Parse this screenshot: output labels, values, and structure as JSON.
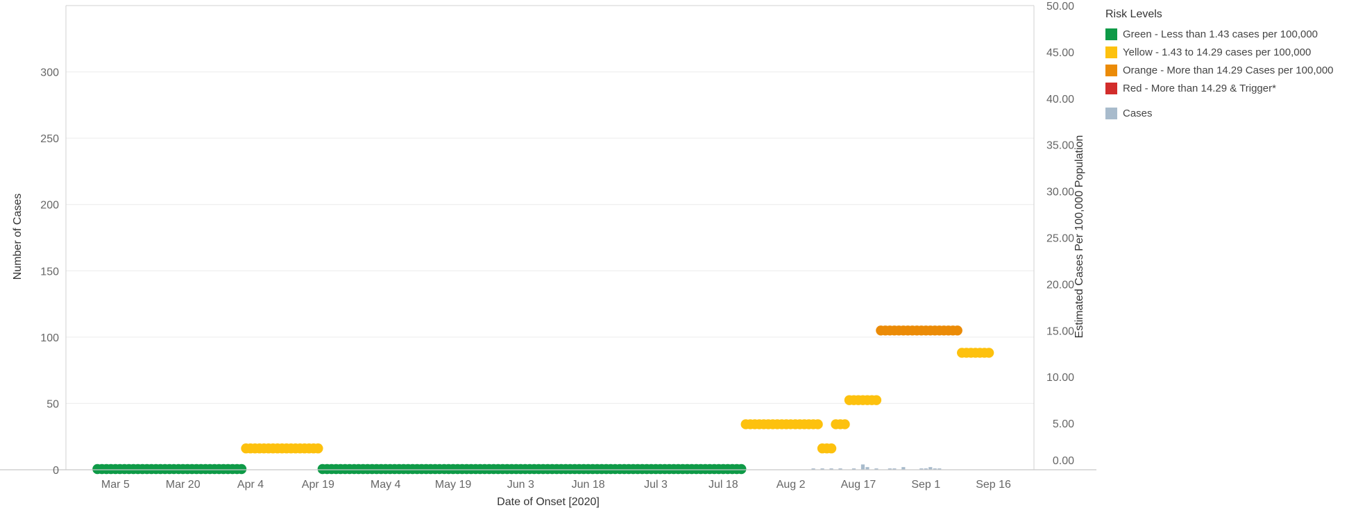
{
  "chart_data": {
    "type": "dual-axis dot timeline with case bars",
    "title": "",
    "xlabel": "Date of Onset [2020]",
    "ylabel_left": "Number of Cases",
    "ylabel_right": "Estimated Cases Per 100,000 Population",
    "x_range": [
      "2020-02-23",
      "2020-09-25"
    ],
    "x_ticks": [
      {
        "label": "Mar 5",
        "date": "2020-03-05"
      },
      {
        "label": "Mar 20",
        "date": "2020-03-20"
      },
      {
        "label": "Apr 4",
        "date": "2020-04-04"
      },
      {
        "label": "Apr 19",
        "date": "2020-04-19"
      },
      {
        "label": "May 4",
        "date": "2020-05-04"
      },
      {
        "label": "May 19",
        "date": "2020-05-19"
      },
      {
        "label": "Jun 3",
        "date": "2020-06-03"
      },
      {
        "label": "Jun 18",
        "date": "2020-06-18"
      },
      {
        "label": "Jul 3",
        "date": "2020-07-03"
      },
      {
        "label": "Jul 18",
        "date": "2020-07-18"
      },
      {
        "label": "Aug 2",
        "date": "2020-08-02"
      },
      {
        "label": "Aug 17",
        "date": "2020-08-17"
      },
      {
        "label": "Sep 1",
        "date": "2020-09-01"
      },
      {
        "label": "Sep 16",
        "date": "2020-09-16"
      }
    ],
    "y_left": {
      "min": 0,
      "max": 350,
      "ticks": [
        "0",
        "50",
        "100",
        "150",
        "200",
        "250",
        "300"
      ],
      "tick_values": [
        0,
        50,
        100,
        150,
        200,
        250,
        300
      ]
    },
    "y_right": {
      "min": 0,
      "max": 50,
      "ticks": [
        "0.00",
        "5.00",
        "10.00",
        "15.00",
        "20.00",
        "25.00",
        "30.00",
        "35.00",
        "40.00",
        "45.00",
        "50.00"
      ],
      "tick_values": [
        0,
        5,
        10,
        15,
        20,
        25,
        30,
        35,
        40,
        45,
        50
      ]
    },
    "grid": true,
    "legend_position": "right",
    "legend_title": "Risk Levels",
    "risk_levels": [
      {
        "key": "green",
        "label": "Green - Less than 1.43 cases per 100,000",
        "color": "#0E9A47"
      },
      {
        "key": "yellow",
        "label": "Yellow - 1.43 to 14.29 cases per 100,000",
        "color": "#FDC10E"
      },
      {
        "key": "orange",
        "label": "Orange - More than 14.29 Cases per 100,000",
        "color": "#EB8B07"
      },
      {
        "key": "red",
        "label": "Red - More than 14.29 & Trigger*",
        "color": "#D22D2B"
      }
    ],
    "cases_legend": {
      "label": "Cases",
      "color": "#A8BBCC"
    },
    "rate_segments": [
      {
        "level": "green",
        "start": "2020-03-01",
        "end": "2020-04-02",
        "value": 0.0
      },
      {
        "level": "yellow",
        "start": "2020-04-03",
        "end": "2020-04-19",
        "value": 2.3
      },
      {
        "level": "green",
        "start": "2020-04-20",
        "end": "2020-07-22",
        "value": 0.0
      },
      {
        "level": "yellow",
        "start": "2020-07-23",
        "end": "2020-08-08",
        "value": 4.9
      },
      {
        "level": "yellow",
        "start": "2020-08-09",
        "end": "2020-08-11",
        "value": 2.3
      },
      {
        "level": "yellow",
        "start": "2020-08-12",
        "end": "2020-08-14",
        "value": 4.9
      },
      {
        "level": "yellow",
        "start": "2020-08-15",
        "end": "2020-08-21",
        "value": 7.5
      },
      {
        "level": "orange",
        "start": "2020-08-22",
        "end": "2020-09-08",
        "value": 15.0
      },
      {
        "level": "yellow",
        "start": "2020-09-09",
        "end": "2020-09-15",
        "value": 12.6
      }
    ],
    "case_bars": [
      {
        "date": "2020-04-01",
        "value": 1
      },
      {
        "date": "2020-07-21",
        "value": 1
      },
      {
        "date": "2020-08-07",
        "value": 1
      },
      {
        "date": "2020-08-09",
        "value": 1
      },
      {
        "date": "2020-08-11",
        "value": 1
      },
      {
        "date": "2020-08-13",
        "value": 1
      },
      {
        "date": "2020-08-16",
        "value": 1
      },
      {
        "date": "2020-08-18",
        "value": 4
      },
      {
        "date": "2020-08-19",
        "value": 2
      },
      {
        "date": "2020-08-21",
        "value": 1
      },
      {
        "date": "2020-08-24",
        "value": 1
      },
      {
        "date": "2020-08-25",
        "value": 1
      },
      {
        "date": "2020-08-27",
        "value": 2
      },
      {
        "date": "2020-08-31",
        "value": 1
      },
      {
        "date": "2020-09-01",
        "value": 1
      },
      {
        "date": "2020-09-02",
        "value": 2
      },
      {
        "date": "2020-09-03",
        "value": 1
      },
      {
        "date": "2020-09-04",
        "value": 1
      }
    ]
  }
}
